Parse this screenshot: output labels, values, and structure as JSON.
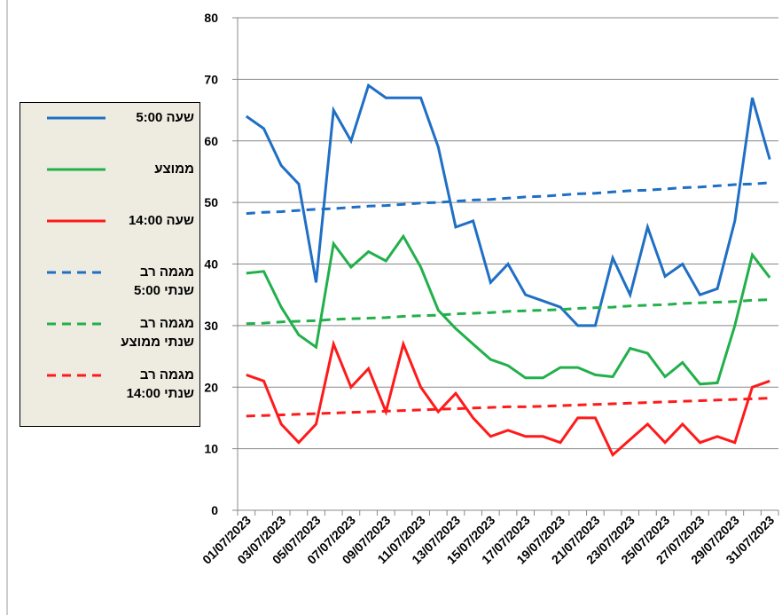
{
  "chart_data": {
    "type": "line",
    "categories": [
      "01/07/2023",
      null,
      "03/07/2023",
      null,
      "05/07/2023",
      null,
      "07/07/2023",
      null,
      "09/07/2023",
      null,
      "11/07/2023",
      null,
      "13/07/2023",
      null,
      "15/07/2023",
      null,
      "17/07/2023",
      null,
      "19/07/2023",
      null,
      "21/07/2023",
      null,
      "23/07/2023",
      null,
      "25/07/2023",
      null,
      "27/07/2023",
      null,
      "29/07/2023",
      null,
      "31/07/2023"
    ],
    "ylim": [
      0,
      80
    ],
    "yticks": [
      0,
      10,
      20,
      30,
      40,
      50,
      60,
      70,
      80
    ],
    "grid": true,
    "series": [
      {
        "name": "שעה 5:00",
        "color": "#1f6fc5",
        "dash": false,
        "values": [
          64,
          62,
          56,
          53,
          37,
          65,
          60,
          69,
          67,
          67,
          67,
          59,
          46,
          47,
          37,
          40,
          35,
          34,
          33,
          30,
          30,
          41,
          35,
          46,
          38,
          40,
          35,
          36,
          47,
          67,
          57
        ]
      },
      {
        "name": "ממוצע",
        "color": "#22b04b",
        "dash": false,
        "values": [
          38.5,
          38.8,
          33,
          28.5,
          26.5,
          43.3,
          39.5,
          42,
          40.5,
          44.5,
          39.5,
          32.5,
          29.5,
          27,
          24.5,
          23.5,
          21.5,
          21.5,
          23.2,
          23.2,
          22,
          21.7,
          26.3,
          25.5,
          21.7,
          24,
          20.5,
          20.7,
          30,
          41.5,
          37.8
        ]
      },
      {
        "name": "שעה 14:00",
        "color": "#ff1a1a",
        "dash": false,
        "values": [
          22,
          21,
          14,
          11,
          14,
          27,
          20,
          23,
          16,
          27,
          20,
          16,
          19,
          15,
          12,
          13,
          12,
          12,
          11,
          15,
          15,
          9,
          11.5,
          14,
          11,
          14,
          11,
          12,
          11,
          20,
          21
        ]
      },
      {
        "name": "מגמה רב שנתי 5:00",
        "color": "#1f6fc5",
        "dash": true,
        "values": [
          48.2,
          48.4,
          48.5,
          48.7,
          48.9,
          49.0,
          49.2,
          49.4,
          49.5,
          49.7,
          49.9,
          50.0,
          50.2,
          50.4,
          50.5,
          50.7,
          50.9,
          51.0,
          51.2,
          51.4,
          51.5,
          51.7,
          51.9,
          52.0,
          52.2,
          52.4,
          52.5,
          52.7,
          52.9,
          53.0,
          53.2
        ]
      },
      {
        "name": "מגמה רב שנתי ממוצע",
        "color": "#22b04b",
        "dash": true,
        "values": [
          30.3,
          30.4,
          30.6,
          30.7,
          30.8,
          31.0,
          31.1,
          31.2,
          31.3,
          31.5,
          31.6,
          31.7,
          31.9,
          32.0,
          32.1,
          32.3,
          32.4,
          32.5,
          32.6,
          32.8,
          32.9,
          33.0,
          33.2,
          33.3,
          33.4,
          33.6,
          33.7,
          33.8,
          33.9,
          34.1,
          34.2
        ]
      },
      {
        "name": "מגמה רב שנתי 14:00",
        "color": "#ff1a1a",
        "dash": true,
        "values": [
          15.3,
          15.4,
          15.5,
          15.6,
          15.7,
          15.8,
          15.9,
          16.0,
          16.1,
          16.2,
          16.3,
          16.4,
          16.5,
          16.6,
          16.7,
          16.8,
          16.8,
          16.9,
          17.0,
          17.1,
          17.2,
          17.3,
          17.4,
          17.5,
          17.6,
          17.7,
          17.8,
          17.9,
          18.0,
          18.1,
          18.2
        ]
      }
    ]
  }
}
